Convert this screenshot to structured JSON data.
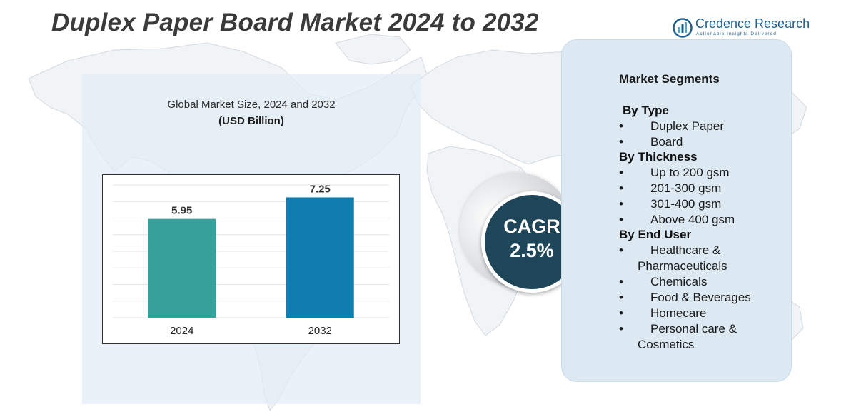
{
  "title": "Duplex Paper Board Market 2024 to 2032",
  "logo": {
    "name": "Credence Research",
    "tagline": "Actionable Insights Delivered",
    "colors": {
      "primary": "#1f5f8b",
      "accent": "#56a7c7"
    }
  },
  "chart_data": {
    "type": "bar",
    "title": "Global Market Size, 2024 and 2032",
    "unit_label": "(USD Billion)",
    "categories": [
      "2024",
      "2032"
    ],
    "values": [
      5.95,
      7.25
    ],
    "data_labels": [
      "5.95",
      "7.25"
    ],
    "ylim": [
      0,
      8
    ],
    "grid": true,
    "legend": "none",
    "bar_colors": [
      "#35a19a",
      "#0f7db0"
    ]
  },
  "cagr": {
    "label": "CAGR",
    "value": "2.5%"
  },
  "segments": {
    "title": "Market Segments",
    "groups": [
      {
        "name": "By Type",
        "items": [
          "Duplex Paper",
          "Board"
        ]
      },
      {
        "name": "By Thickness",
        "items": [
          "Up to 200 gsm",
          "201-300 gsm",
          "301-400 gsm",
          "Above 400 gsm"
        ]
      },
      {
        "name": "By End User",
        "items": [
          "Healthcare &",
          "Pharmaceuticals",
          "Chemicals",
          "Food & Beverages",
          "Homecare",
          "Personal care &",
          "Cosmetics"
        ]
      }
    ]
  },
  "colors": {
    "panel_bg": "#e2ecf5",
    "segments_bg": "#dce9f2",
    "cagr_circle": "#1e4558",
    "title_text": "#3a3a3a"
  }
}
